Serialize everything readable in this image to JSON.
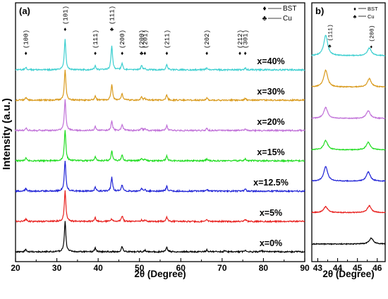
{
  "chart_data": [
    {
      "type": "line",
      "panel_label": "(a)",
      "xlabel": "2θ (Degree)",
      "ylabel": "Intensity (a.u.)",
      "xlim": [
        20,
        90
      ],
      "xticks": [
        "20",
        "30",
        "40",
        "50",
        "60",
        "70",
        "80",
        "90"
      ],
      "legend": [
        {
          "symbol": "♦",
          "label": "BST"
        },
        {
          "symbol": "♣",
          "label": "Cu"
        }
      ],
      "peak_labels": [
        {
          "x": 22.5,
          "label": "(100)",
          "marker": "♦"
        },
        {
          "x": 32.0,
          "label": "(101)",
          "marker": "♦"
        },
        {
          "x": 39.3,
          "label": "(111)",
          "marker": "♦"
        },
        {
          "x": 43.3,
          "label": "(111)",
          "marker": "♣"
        },
        {
          "x": 45.8,
          "label": "(200)",
          "marker": "♦"
        },
        {
          "x": 50.5,
          "label": "(200)",
          "marker": "♣"
        },
        {
          "x": 51.3,
          "label": "(201)",
          "marker": "♦"
        },
        {
          "x": 56.6,
          "label": "(211)",
          "marker": "♦"
        },
        {
          "x": 66.3,
          "label": "(202)",
          "marker": "♦"
        },
        {
          "x": 74.3,
          "label": "(212)",
          "marker": "♦"
        },
        {
          "x": 75.6,
          "label": "(301)",
          "marker": "♦"
        }
      ],
      "series": [
        {
          "name": "x=0%",
          "color": "#000000",
          "peaks": [
            [
              22.5,
              0.08
            ],
            [
              32.0,
              1.0
            ],
            [
              39.3,
              0.12
            ],
            [
              45.8,
              0.18
            ],
            [
              51.3,
              0.05
            ],
            [
              56.6,
              0.14
            ],
            [
              66.3,
              0.06
            ],
            [
              70.6,
              0.03
            ],
            [
              75.6,
              0.06
            ],
            [
              79.6,
              0.03
            ]
          ]
        },
        {
          "name": "x=5%",
          "color": "#e8201e",
          "peaks": [
            [
              22.5,
              0.08
            ],
            [
              32.0,
              1.0
            ],
            [
              39.3,
              0.12
            ],
            [
              43.3,
              0.08
            ],
            [
              45.8,
              0.18
            ],
            [
              50.5,
              0.04
            ],
            [
              51.3,
              0.05
            ],
            [
              56.6,
              0.14
            ],
            [
              66.3,
              0.06
            ],
            [
              75.6,
              0.06
            ]
          ]
        },
        {
          "name": "x=12.5%",
          "color": "#1f22d6",
          "peaks": [
            [
              22.5,
              0.08
            ],
            [
              32.0,
              1.0
            ],
            [
              39.3,
              0.12
            ],
            [
              43.3,
              0.45
            ],
            [
              45.8,
              0.2
            ],
            [
              50.5,
              0.08
            ],
            [
              51.3,
              0.05
            ],
            [
              56.6,
              0.16
            ],
            [
              66.3,
              0.06
            ],
            [
              75.6,
              0.06
            ]
          ]
        },
        {
          "name": "x=15%",
          "color": "#22dd22",
          "peaks": [
            [
              22.5,
              0.08
            ],
            [
              32.0,
              1.0
            ],
            [
              39.3,
              0.12
            ],
            [
              43.3,
              0.32
            ],
            [
              45.8,
              0.2
            ],
            [
              50.5,
              0.08
            ],
            [
              51.3,
              0.05
            ],
            [
              56.6,
              0.16
            ],
            [
              66.3,
              0.06
            ],
            [
              75.6,
              0.06
            ]
          ]
        },
        {
          "name": "x=20%",
          "color": "#c070d8",
          "peaks": [
            [
              22.5,
              0.08
            ],
            [
              32.0,
              1.0
            ],
            [
              39.3,
              0.12
            ],
            [
              43.3,
              0.3
            ],
            [
              45.8,
              0.2
            ],
            [
              50.5,
              0.08
            ],
            [
              51.3,
              0.05
            ],
            [
              56.6,
              0.16
            ],
            [
              66.3,
              0.06
            ],
            [
              75.6,
              0.06
            ]
          ]
        },
        {
          "name": "x=30%",
          "color": "#d99a1c",
          "peaks": [
            [
              22.5,
              0.08
            ],
            [
              32.0,
              1.0
            ],
            [
              39.3,
              0.12
            ],
            [
              43.3,
              0.52
            ],
            [
              45.8,
              0.22
            ],
            [
              50.5,
              0.1
            ],
            [
              51.3,
              0.05
            ],
            [
              56.6,
              0.16
            ],
            [
              66.3,
              0.06
            ],
            [
              75.6,
              0.06
            ]
          ]
        },
        {
          "name": "x=40%",
          "color": "#3dcfd0",
          "peaks": [
            [
              22.5,
              0.08
            ],
            [
              32.0,
              1.0
            ],
            [
              39.3,
              0.12
            ],
            [
              43.3,
              0.8
            ],
            [
              45.8,
              0.22
            ],
            [
              50.5,
              0.14
            ],
            [
              51.3,
              0.05
            ],
            [
              56.6,
              0.16
            ],
            [
              66.3,
              0.06
            ],
            [
              75.6,
              0.06
            ]
          ]
        }
      ]
    },
    {
      "type": "line",
      "panel_label": "b)",
      "xlabel": "2θ (Degree)",
      "xlim": [
        42.7,
        46.4
      ],
      "xticks": [
        "43",
        "44",
        "45",
        "46"
      ],
      "legend": [
        {
          "symbol": "♦",
          "label": "BST"
        },
        {
          "symbol": "♣",
          "label": "Cu"
        }
      ],
      "peak_labels": [
        {
          "x": 43.6,
          "label": "(111)",
          "marker": "♣"
        },
        {
          "x": 45.7,
          "label": "(200)",
          "marker": "♦"
        }
      ],
      "series": [
        {
          "name": "x=0%",
          "color": "#000000",
          "peaks": [
            [
              45.7,
              0.35
            ]
          ]
        },
        {
          "name": "x=5%",
          "color": "#e8201e",
          "peaks": [
            [
              43.4,
              0.35
            ],
            [
              45.6,
              0.4
            ]
          ]
        },
        {
          "name": "x=12.5%",
          "color": "#1f22d6",
          "peaks": [
            [
              43.4,
              0.85
            ],
            [
              45.55,
              0.55
            ]
          ]
        },
        {
          "name": "x=15%",
          "color": "#22dd22",
          "peaks": [
            [
              43.4,
              0.55
            ],
            [
              45.55,
              0.45
            ]
          ]
        },
        {
          "name": "x=20%",
          "color": "#c070d8",
          "peaks": [
            [
              43.4,
              0.65
            ],
            [
              45.55,
              0.45
            ]
          ]
        },
        {
          "name": "x=30%",
          "color": "#d99a1c",
          "peaks": [
            [
              43.4,
              1.0
            ],
            [
              45.6,
              0.5
            ]
          ]
        },
        {
          "name": "x=40%",
          "color": "#3dcfd0",
          "peaks": [
            [
              43.4,
              1.2
            ],
            [
              45.6,
              0.45
            ]
          ]
        }
      ]
    }
  ]
}
